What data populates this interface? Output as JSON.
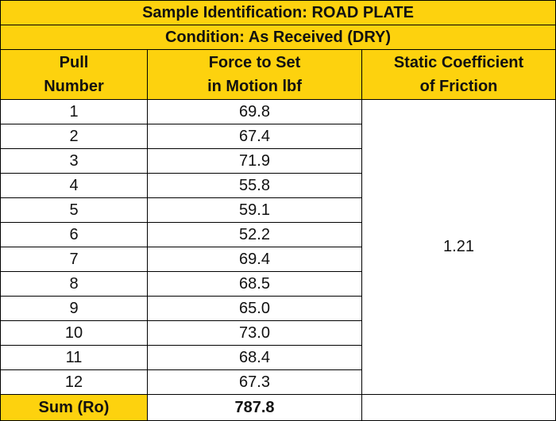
{
  "table": {
    "title": "Sample Identification: ROAD PLATE",
    "condition": "Condition: As Received (DRY)",
    "columns": [
      [
        "Pull",
        "Number"
      ],
      [
        "Force to Set",
        "in Motion lbf"
      ],
      [
        "Static Coefficient",
        "of Friction"
      ]
    ],
    "rows": [
      [
        "1",
        "69.8"
      ],
      [
        "2",
        "67.4"
      ],
      [
        "3",
        "71.9"
      ],
      [
        "4",
        "55.8"
      ],
      [
        "5",
        "59.1"
      ],
      [
        "6",
        "52.2"
      ],
      [
        "7",
        "69.4"
      ],
      [
        "8",
        "68.5"
      ],
      [
        "9",
        "65.0"
      ],
      [
        "10",
        "73.0"
      ],
      [
        "11",
        "68.4"
      ],
      [
        "12",
        "67.3"
      ]
    ],
    "coefficient": "1.21",
    "sum_label": "Sum (Ro)",
    "sum_value": "787.8"
  }
}
